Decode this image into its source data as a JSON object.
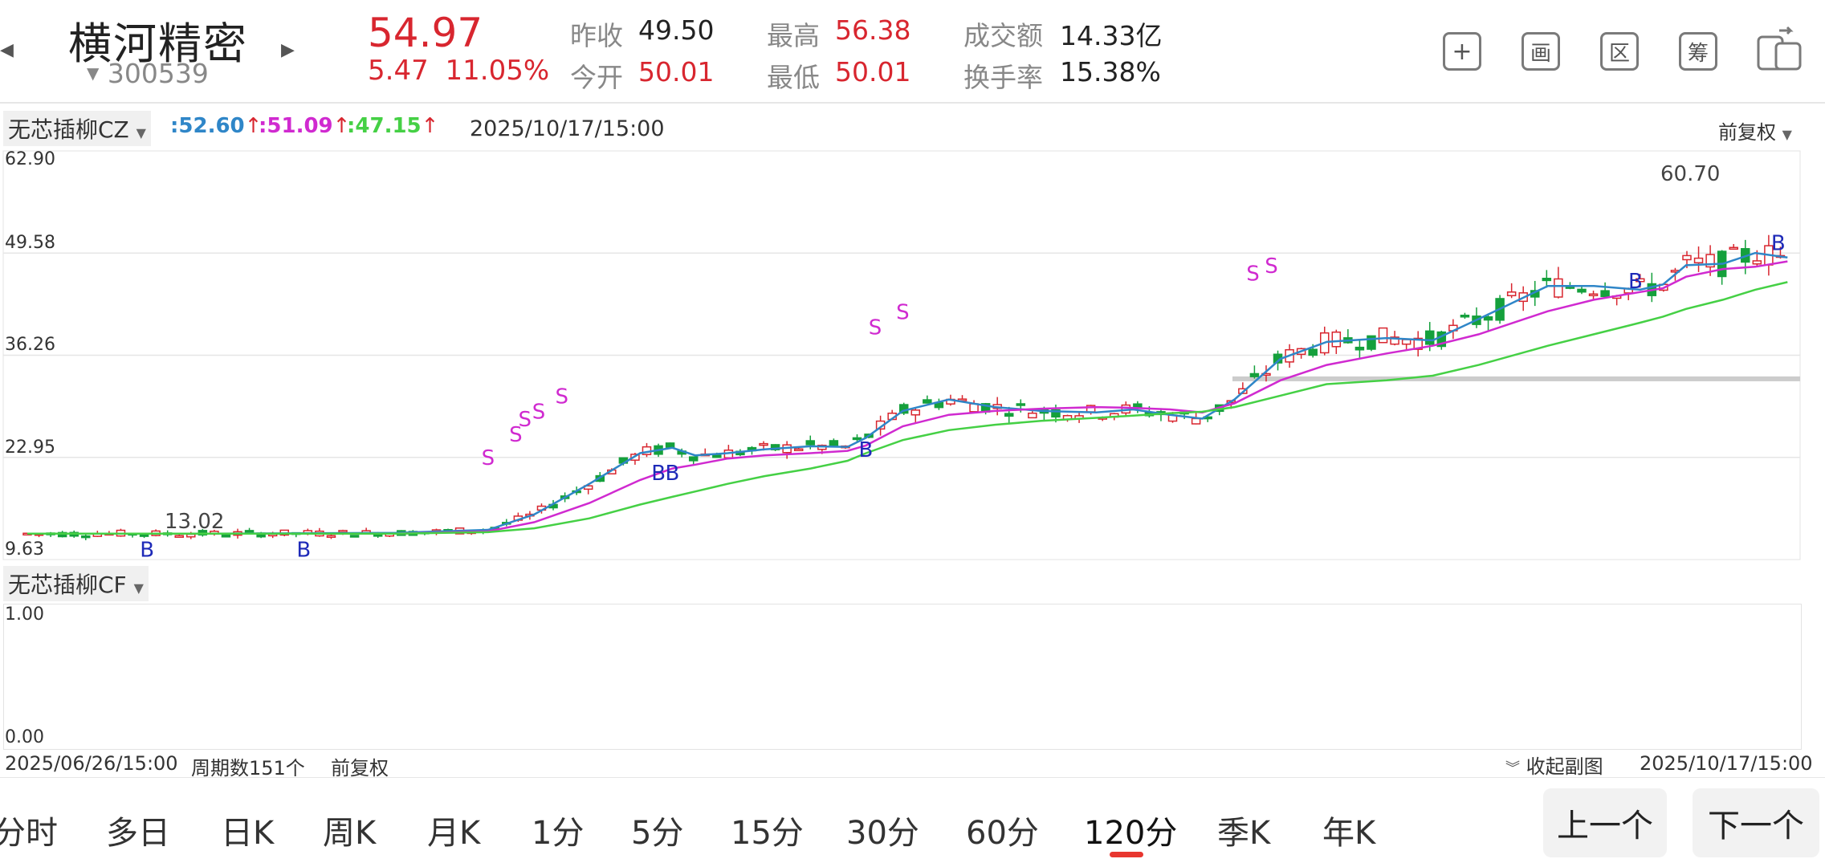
{
  "stock": {
    "name": "横河精密",
    "code": "300539",
    "price": "54.97",
    "change": "5.47",
    "change_pct": "11.05%"
  },
  "quote": {
    "prev_close_label": "昨收",
    "prev_close": "49.50",
    "open_label": "今开",
    "open": "50.01",
    "high_label": "最高",
    "high": "56.38",
    "low_label": "最低",
    "low": "50.01",
    "turnover_label": "成交额",
    "turnover": "14.33亿",
    "turnover_rate_label": "换手率",
    "turnover_rate": "15.38%"
  },
  "toolbar_icons": [
    "plus-icon",
    "draw-icon",
    "range-icon",
    "chip-icon",
    "switch-screen-icon"
  ],
  "toolbar_glyphs": {
    "plus": "+",
    "draw": "画",
    "range": "区",
    "chip": "筹"
  },
  "main_indicator": {
    "name": "无芯插柳CZ",
    "ma1": ":52.60",
    "ma2": ":51.09",
    "ma3": ":47.15",
    "datetime": "2025/10/17/15:00",
    "adjust": "前复权",
    "y_labels": [
      "62.90",
      "49.58",
      "36.26",
      "22.95",
      "9.63"
    ],
    "max_label": "60.70",
    "min_label": "13.02"
  },
  "sub_indicator": {
    "name": "无芯插柳CF",
    "y_top": "1.00",
    "y_bottom": "0.00"
  },
  "footer": {
    "start_date": "2025/06/26/15:00",
    "period_count": "周期数151个",
    "adjust": "前复权",
    "collapse": "收起副图",
    "end_date": "2025/10/17/15:00"
  },
  "period_tabs": [
    {
      "label": "分时"
    },
    {
      "label": "多日"
    },
    {
      "label": "日K"
    },
    {
      "label": "周K"
    },
    {
      "label": "月K"
    },
    {
      "label": "1分"
    },
    {
      "label": "5分"
    },
    {
      "label": "15分"
    },
    {
      "label": "30分"
    },
    {
      "label": "60分"
    },
    {
      "label": "120分",
      "active": true
    },
    {
      "label": "季K"
    },
    {
      "label": "年K"
    }
  ],
  "nav": {
    "prev": "上一个",
    "next": "下一个"
  },
  "colors": {
    "up": "#d8262f",
    "down": "#15a03c",
    "ma1": "#2f86c8",
    "ma2": "#d02ad0",
    "ma3": "#45d045",
    "accent": "#e8362f"
  },
  "chart_data": {
    "type": "candlestick",
    "y_range": [
      9.63,
      62.9
    ],
    "signals": {
      "buy_label": "B",
      "sell_label": "S"
    },
    "series": [
      {
        "name": ":52.60",
        "color": "#2f86c8",
        "values": [
          [
            0,
            13.0
          ],
          [
            40,
            13.0
          ],
          [
            80,
            13.1
          ],
          [
            100,
            13.5
          ],
          [
            110,
            15.5
          ],
          [
            122,
            19.5
          ],
          [
            133,
            23.5
          ],
          [
            140,
            24.2
          ],
          [
            145,
            23.2
          ],
          [
            152,
            23.5
          ],
          [
            160,
            24.0
          ],
          [
            170,
            24.4
          ],
          [
            178,
            24.3
          ],
          [
            182,
            25.5
          ],
          [
            190,
            29.0
          ],
          [
            200,
            30.5
          ],
          [
            210,
            29.5
          ],
          [
            220,
            29.0
          ],
          [
            232,
            28.8
          ],
          [
            240,
            29.2
          ],
          [
            248,
            28.5
          ],
          [
            255,
            28.0
          ],
          [
            262,
            30.5
          ],
          [
            272,
            35.8
          ],
          [
            282,
            38.0
          ],
          [
            295,
            38.5
          ],
          [
            305,
            38.2
          ],
          [
            315,
            41.0
          ],
          [
            330,
            45.3
          ],
          [
            340,
            45.3
          ],
          [
            350,
            44.8
          ],
          [
            355,
            45.5
          ],
          [
            360,
            48.0
          ],
          [
            368,
            48.2
          ],
          [
            375,
            49.6
          ],
          [
            382,
            49.0
          ]
        ]
      },
      {
        "name": ":51.09",
        "color": "#d02ad0",
        "values": [
          [
            0,
            13.0
          ],
          [
            40,
            13.0
          ],
          [
            80,
            13.0
          ],
          [
            100,
            13.3
          ],
          [
            110,
            14.5
          ],
          [
            122,
            17.0
          ],
          [
            133,
            20.0
          ],
          [
            140,
            21.5
          ],
          [
            145,
            22.0
          ],
          [
            152,
            22.8
          ],
          [
            160,
            23.2
          ],
          [
            170,
            23.5
          ],
          [
            178,
            23.8
          ],
          [
            182,
            24.5
          ],
          [
            190,
            27.0
          ],
          [
            200,
            28.5
          ],
          [
            210,
            29.0
          ],
          [
            220,
            29.3
          ],
          [
            232,
            29.5
          ],
          [
            240,
            29.4
          ],
          [
            248,
            29.2
          ],
          [
            255,
            28.8
          ],
          [
            262,
            30.0
          ],
          [
            272,
            33.0
          ],
          [
            282,
            35.0
          ],
          [
            295,
            36.5
          ],
          [
            305,
            37.5
          ],
          [
            315,
            39.0
          ],
          [
            330,
            42.0
          ],
          [
            340,
            43.5
          ],
          [
            350,
            44.5
          ],
          [
            355,
            45.0
          ],
          [
            360,
            46.5
          ],
          [
            368,
            47.5
          ],
          [
            375,
            47.8
          ],
          [
            382,
            48.5
          ]
        ]
      },
      {
        "name": ":47.15",
        "color": "#45d045",
        "values": [
          [
            0,
            13.0
          ],
          [
            40,
            13.0
          ],
          [
            80,
            13.0
          ],
          [
            100,
            13.2
          ],
          [
            110,
            13.7
          ],
          [
            122,
            15.0
          ],
          [
            133,
            16.8
          ],
          [
            140,
            17.8
          ],
          [
            145,
            18.5
          ],
          [
            152,
            19.5
          ],
          [
            160,
            20.5
          ],
          [
            170,
            21.5
          ],
          [
            178,
            22.5
          ],
          [
            182,
            23.5
          ],
          [
            190,
            25.2
          ],
          [
            200,
            26.5
          ],
          [
            210,
            27.2
          ],
          [
            220,
            27.7
          ],
          [
            232,
            28.1
          ],
          [
            240,
            28.4
          ],
          [
            248,
            28.7
          ],
          [
            255,
            28.9
          ],
          [
            262,
            29.5
          ],
          [
            272,
            31.0
          ],
          [
            282,
            32.5
          ],
          [
            295,
            33.0
          ],
          [
            305,
            33.6
          ],
          [
            315,
            35.0
          ],
          [
            330,
            37.5
          ],
          [
            340,
            39.0
          ],
          [
            350,
            40.5
          ],
          [
            355,
            41.3
          ],
          [
            360,
            42.3
          ],
          [
            368,
            43.5
          ],
          [
            375,
            44.8
          ],
          [
            382,
            45.8
          ]
        ]
      }
    ],
    "labels_max": "60.70",
    "labels_min": "13.02"
  }
}
